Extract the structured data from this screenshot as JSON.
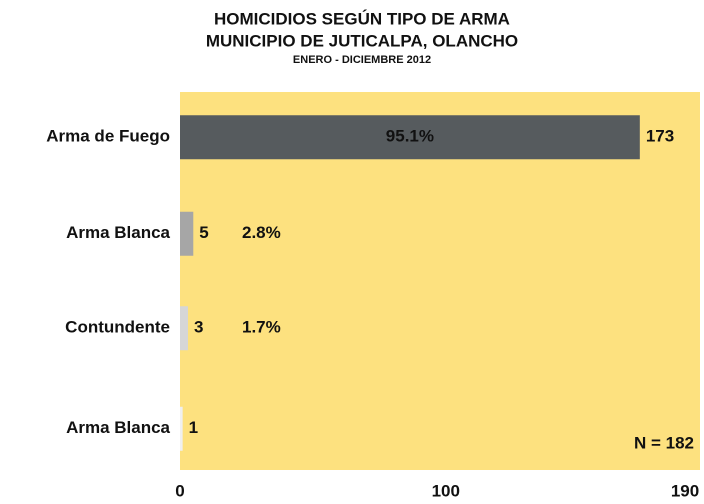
{
  "chart_data": {
    "type": "bar",
    "orientation": "horizontal",
    "title": "HOMICIDIOS SEGÚN TIPO DE ARMA",
    "subtitle": "MUNICIPIO DE JUTICALPA, OLANCHO",
    "period": "ENERO - DICIEMBRE 2012",
    "categories": [
      "Arma de Fuego",
      "Arma Blanca",
      "Contundente",
      "Arma Blanca"
    ],
    "values": [
      173,
      5,
      3,
      1
    ],
    "percent_labels": [
      "95.1%",
      "2.8%",
      "1.7%",
      null
    ],
    "colors": [
      "#565b5e",
      "#a6a6a6",
      "#d6d6d6",
      "#f0f0f0"
    ],
    "background": "#fde17f",
    "annotation": "N = 182",
    "xlim": [
      0,
      190
    ],
    "xticks": [
      0,
      100,
      190
    ]
  }
}
